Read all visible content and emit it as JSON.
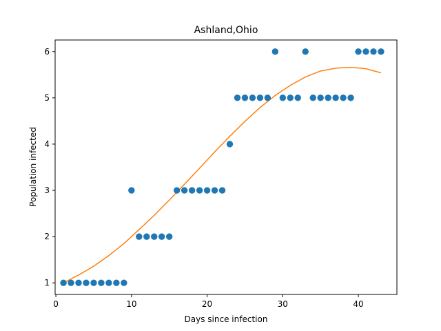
{
  "chart_data": {
    "type": "scatter",
    "title": "Ashland,Ohio",
    "xlabel": "Days since infection",
    "ylabel": "Population infected",
    "xlim": [
      -0.1,
      45.1
    ],
    "ylim": [
      0.75,
      6.25
    ],
    "xticks": [
      0,
      10,
      20,
      30,
      40
    ],
    "yticks": [
      1,
      2,
      3,
      4,
      5,
      6
    ],
    "grid": false,
    "legend": "none",
    "colors": {
      "points": "#1f77b4",
      "fit": "#ff7f0e"
    },
    "series": [
      {
        "kind": "scatter",
        "x": [
          1,
          2,
          3,
          4,
          5,
          6,
          7,
          8,
          9,
          10,
          11,
          12,
          13,
          14,
          15,
          16,
          17,
          18,
          19,
          20,
          21,
          22,
          23,
          24,
          25,
          26,
          27,
          28,
          29,
          30,
          31,
          32,
          33,
          34,
          35,
          36,
          37,
          38,
          39,
          40,
          41,
          42,
          43
        ],
        "y": [
          1,
          1,
          1,
          1,
          1,
          1,
          1,
          1,
          1,
          3,
          2,
          2,
          2,
          2,
          2,
          3,
          3,
          3,
          3,
          3,
          3,
          3,
          4,
          5,
          5,
          5,
          5,
          5,
          6,
          5,
          5,
          5,
          6,
          5,
          5,
          5,
          5,
          5,
          5,
          6,
          6,
          6,
          6
        ]
      },
      {
        "kind": "line",
        "x": [
          1,
          3,
          5,
          7,
          9,
          11,
          13,
          15,
          17,
          19,
          21,
          23,
          25,
          27,
          29,
          31,
          33,
          35,
          37,
          39,
          41,
          43
        ],
        "y": [
          1.0,
          1.17,
          1.36,
          1.59,
          1.85,
          2.15,
          2.46,
          2.79,
          3.13,
          3.48,
          3.83,
          4.17,
          4.49,
          4.79,
          5.05,
          5.27,
          5.45,
          5.58,
          5.64,
          5.66,
          5.63,
          5.54
        ]
      }
    ]
  }
}
